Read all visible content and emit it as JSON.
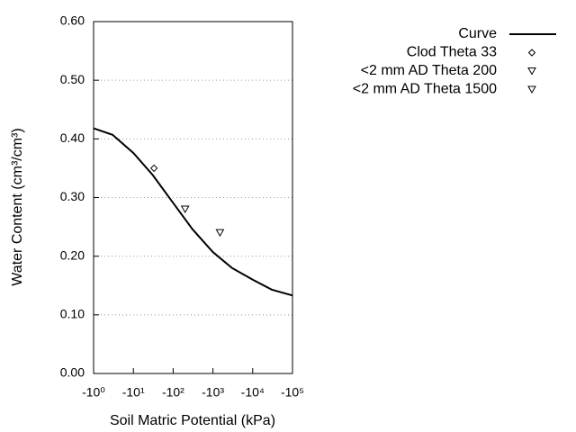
{
  "chart_data": {
    "type": "line",
    "x_label": "Soil Matric Potential (kPa)",
    "y_label": "Water Content (cm³/cm³)",
    "xscale": "log",
    "xlim": [
      -1,
      -100000
    ],
    "xticks": [
      {
        "value": -1,
        "label": "-10⁰"
      },
      {
        "value": -10,
        "label": "-10¹"
      },
      {
        "value": -100,
        "label": "-10²"
      },
      {
        "value": -1000,
        "label": "-10³"
      },
      {
        "value": -10000,
        "label": "-10⁴"
      },
      {
        "value": -100000,
        "label": "-10⁵"
      }
    ],
    "ylim": [
      0,
      0.6
    ],
    "yticks": [
      {
        "value": 0,
        "label": "0.00"
      },
      {
        "value": 0.1,
        "label": "0.10"
      },
      {
        "value": 0.2,
        "label": "0.20"
      },
      {
        "value": 0.3,
        "label": "0.30"
      },
      {
        "value": 0.4,
        "label": "0.40"
      },
      {
        "value": 0.5,
        "label": "0.50"
      },
      {
        "value": 0.6,
        "label": "0.60"
      }
    ],
    "grid": true,
    "legend": "upper right",
    "series": [
      {
        "name": "Curve",
        "style": "line",
        "color": "#000000",
        "x": [
          -1,
          -3,
          -10,
          -31,
          -97,
          -306,
          -1000,
          -3000,
          -10000,
          -30000,
          -100000
        ],
        "values": [
          0.418,
          0.407,
          0.376,
          0.338,
          0.292,
          0.246,
          0.207,
          0.18,
          0.16,
          0.143,
          0.133
        ]
      },
      {
        "name": "Clod Theta 33",
        "style": "diamond",
        "color": "#000000",
        "x": [
          -33
        ],
        "values": [
          0.35
        ]
      },
      {
        "name": "<2 mm AD Theta 200",
        "style": "triangle-down",
        "color": "#000000",
        "x": [
          -200
        ],
        "values": [
          0.28
        ]
      },
      {
        "name": "<2 mm AD Theta 1500",
        "style": "triangle-down",
        "color": "#000000",
        "x": [
          -1500
        ],
        "values": [
          0.24
        ]
      }
    ]
  }
}
